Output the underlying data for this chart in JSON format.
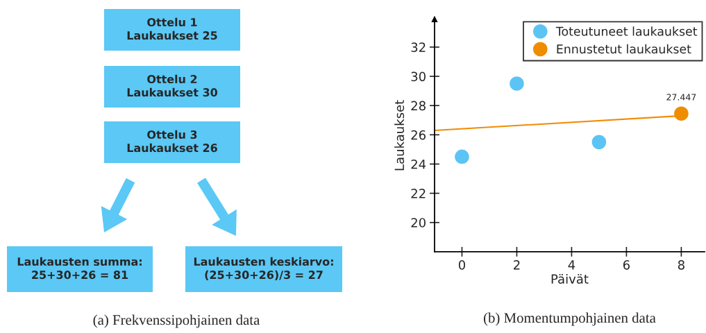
{
  "chart_data": [
    {
      "type": "other",
      "title": "(a) Frekvenssipohjainen data",
      "annotations": [
        "Ottelu 1\nLaukaukset 25",
        "Ottelu 2\nLaukaukset 30",
        "Ottelu 3\nLaukaukset 26",
        "Laukausten summa:\n25+30+26 = 81",
        "Laukausten keskiarvo:\n(25+30+26)/3 = 27"
      ]
    },
    {
      "type": "scatter",
      "title": "(b) Momentumpohjainen data",
      "xlabel": "Päivät",
      "ylabel": "Laukaukset",
      "xlim": [
        -1,
        8.85
      ],
      "ylim": [
        18,
        33.9
      ],
      "xticks": [
        0,
        2,
        4,
        6,
        8
      ],
      "yticks": [
        20,
        22,
        24,
        26,
        28,
        30,
        32
      ],
      "legend": "top right",
      "marker": "circle",
      "series": [
        {
          "type": "line",
          "marker": "none",
          "color": "#f08c00",
          "x": [
            -1,
            8
          ],
          "values": [
            26.3,
            27.3
          ]
        },
        {
          "name": "Toteutuneet laukaukset",
          "color": "#5bc4f5",
          "x": [
            0,
            2,
            5
          ],
          "values": [
            24.5,
            29.5,
            25.5
          ]
        },
        {
          "name": "Ennustetut laukaukset",
          "color": "#f08c00",
          "x": [
            8
          ],
          "values": [
            27.447
          ],
          "value_labels": [
            "27.447"
          ]
        }
      ]
    }
  ]
}
